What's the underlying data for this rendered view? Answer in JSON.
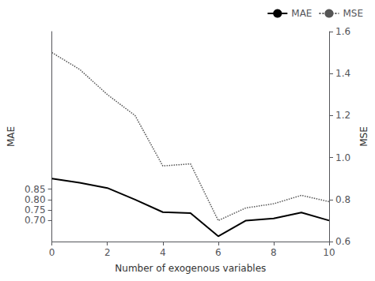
{
  "chart_data": {
    "type": "line",
    "xlabel": "Number of exogenous variables",
    "ylabel": "MAE",
    "y2label": "MSE",
    "x": [
      0,
      1,
      2,
      3,
      4,
      5,
      6,
      7,
      8,
      9,
      10
    ],
    "series": [
      {
        "name": "MAE",
        "color": "#000000",
        "line_style": "solid",
        "values": [
          0.9,
          0.88,
          0.855,
          0.8,
          0.74,
          0.735,
          0.625,
          0.7,
          0.71,
          0.738,
          0.7
        ]
      },
      {
        "name": "MSE",
        "color": "#555555",
        "line_style": "dotted",
        "axis": "y2",
        "values": [
          1.5,
          1.42,
          1.3,
          1.2,
          0.96,
          0.97,
          0.7,
          0.76,
          0.78,
          0.82,
          0.79
        ]
      }
    ],
    "xlim": [
      0,
      10
    ],
    "xticks": [
      0,
      2,
      4,
      6,
      8,
      10
    ],
    "ylim": [
      0.6,
      1.6
    ],
    "yticks": [
      {
        "value": 0.7,
        "label": "0.70"
      },
      {
        "value": 0.75,
        "label": "0.75"
      },
      {
        "value": 0.8,
        "label": "0.80"
      },
      {
        "value": 0.85,
        "label": "0.85"
      }
    ],
    "y2lim": [
      0.6,
      1.6
    ],
    "y2ticks": [
      0.6,
      0.8,
      {
        "value": 1.0,
        "label": "1.0"
      },
      1.2,
      1.4,
      1.6
    ],
    "legend": "upper right",
    "grid": false
  }
}
